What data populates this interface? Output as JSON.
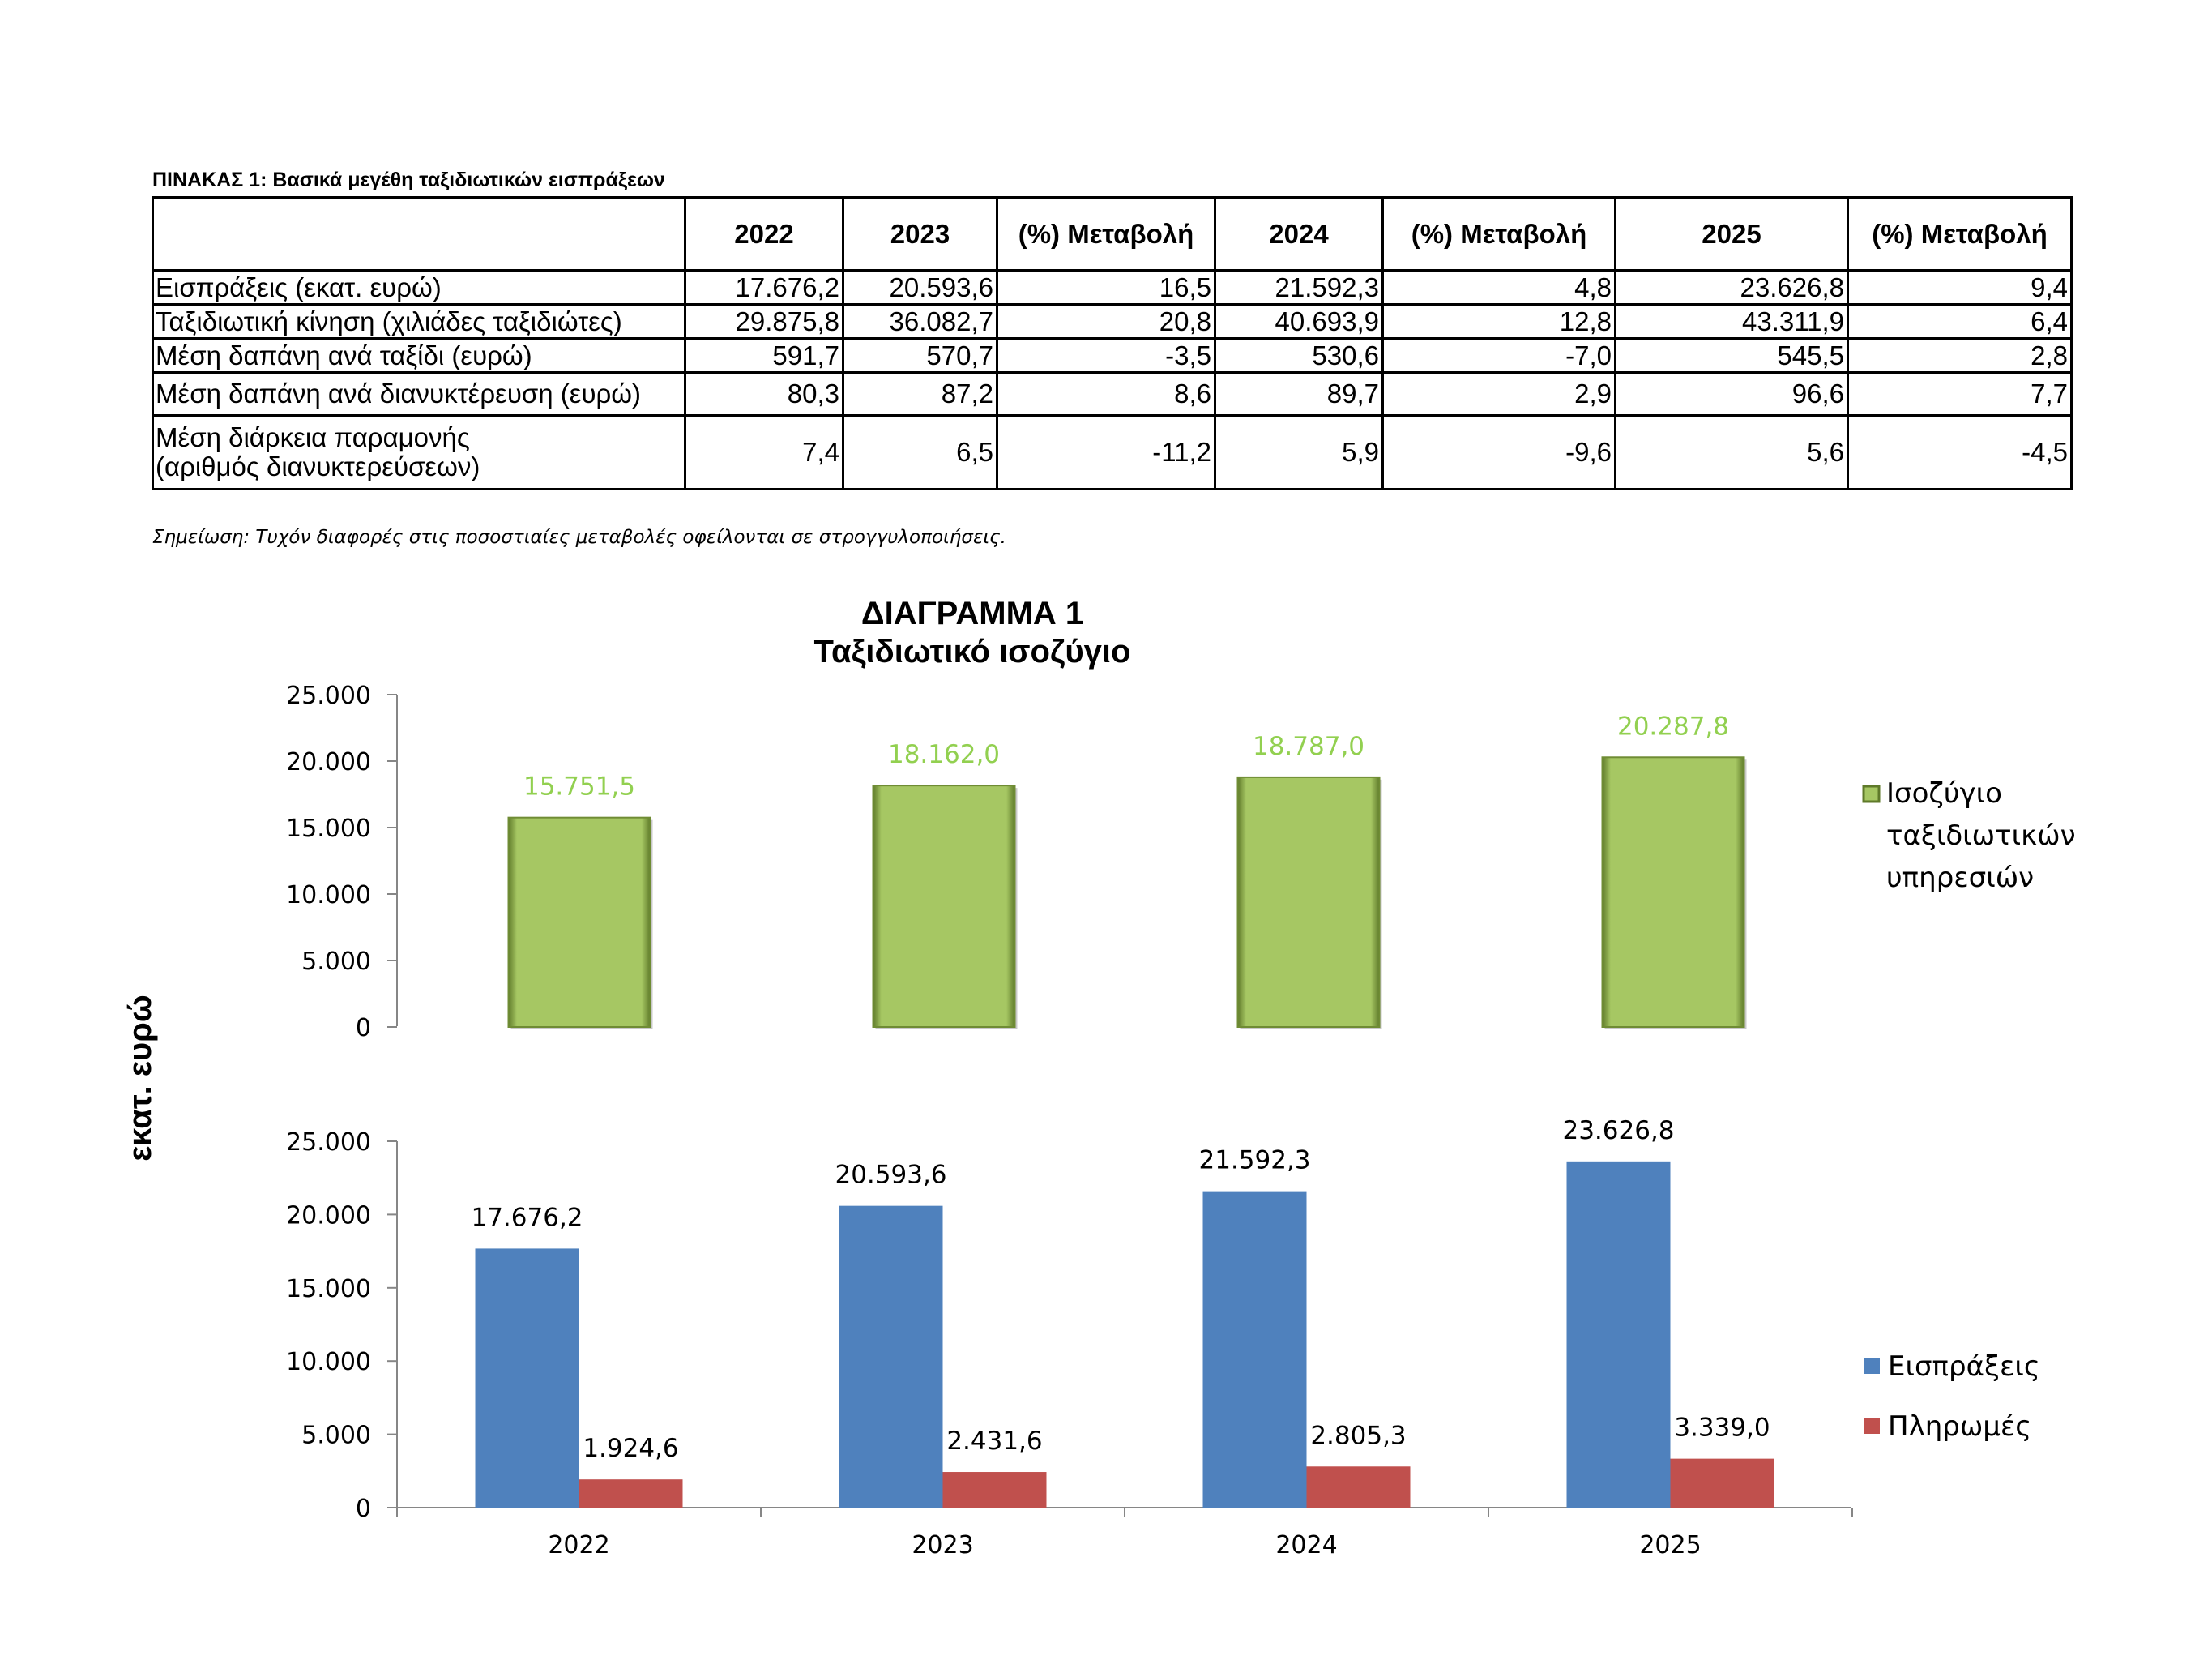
{
  "table": {
    "caption": "ΠΙΝΑΚΑΣ 1: Βασικά μεγέθη ταξιδιωτικών εισπράξεων",
    "headers": [
      "",
      "2022",
      "2023",
      "(%) Μεταβολή",
      "2024",
      "(%) Μεταβολή",
      "2025",
      "(%) Μεταβολή"
    ],
    "rows": [
      {
        "label": "Εισπράξεις (εκατ. ευρώ)",
        "cells": [
          "17.676,2",
          "20.593,6",
          "16,5",
          "21.592,3",
          "4,8",
          "23.626,8",
          "9,4"
        ]
      },
      {
        "label": "Ταξιδιωτική κίνηση (χιλιάδες ταξιδιώτες)",
        "cells": [
          "29.875,8",
          "36.082,7",
          "20,8",
          "40.693,9",
          "12,8",
          "43.311,9",
          "6,4"
        ]
      },
      {
        "label": "Μέση δαπάνη ανά ταξίδι (ευρώ)",
        "cells": [
          "591,7",
          "570,7",
          "-3,5",
          "530,6",
          "-7,0",
          "545,5",
          "2,8"
        ]
      },
      {
        "label": "Μέση δαπάνη ανά διανυκτέρευση (ευρώ)",
        "cells": [
          "80,3",
          "87,2",
          "8,6",
          "89,7",
          "2,9",
          "96,6",
          "7,7"
        ]
      },
      {
        "label": "Μέση διάρκεια παραμονής",
        "label2": "(αριθμός διανυκτερεύσεων)",
        "cells": [
          "7,4",
          "6,5",
          "-11,2",
          "5,9",
          "-9,6",
          "5,6",
          "-4,5"
        ]
      }
    ],
    "note": "Σημείωση: Τυχόν διαφορές στις ποσοστιαίες μεταβολές οφείλονται σε στρογγυλοποιήσεις."
  },
  "diagram": {
    "title": "ΔΙΑΓΡΑΜΜΑ 1",
    "subtitle": "Ταξιδιωτικό ισοζύγιο",
    "ylabel": "εκατ. ευρώ"
  },
  "chart_data": [
    {
      "type": "bar",
      "categories": [
        "2022",
        "2023",
        "2024",
        "2025"
      ],
      "series": [
        {
          "name": "Ισοζύγιο ταξιδιωτικών υπηρεσιών",
          "values": [
            15751.5,
            18162.0,
            18787.0,
            20287.8
          ],
          "labels": [
            "15.751,5",
            "18.162,0",
            "18.787,0",
            "20.287,8"
          ],
          "color": "#a6c763"
        }
      ],
      "legend_lines": [
        "Ισοζύγιο",
        "ταξιδιωτικών",
        "υπηρεσιών"
      ],
      "yticks": [
        "0",
        "5.000",
        "10.000",
        "15.000",
        "20.000",
        "25.000"
      ],
      "ylim": [
        0,
        25000
      ],
      "legend": "right",
      "label_color": "#92d050"
    },
    {
      "type": "bar",
      "categories": [
        "2022",
        "2023",
        "2024",
        "2025"
      ],
      "series": [
        {
          "name": "Εισπράξεις",
          "values": [
            17676.2,
            20593.6,
            21592.3,
            23626.8
          ],
          "labels": [
            "17.676,2",
            "20.593,6",
            "21.592,3",
            "23.626,8"
          ],
          "color": "#4f81bd"
        },
        {
          "name": "Πληρωμές",
          "values": [
            1924.6,
            2431.6,
            2805.3,
            3339.0
          ],
          "labels": [
            "1.924,6",
            "2.431,6",
            "2.805,3",
            "3.339,0"
          ],
          "color": "#c0504d"
        }
      ],
      "yticks": [
        "0",
        "5.000",
        "10.000",
        "15.000",
        "20.000",
        "25.000"
      ],
      "ylim": [
        0,
        25000
      ],
      "legend": "right"
    }
  ]
}
